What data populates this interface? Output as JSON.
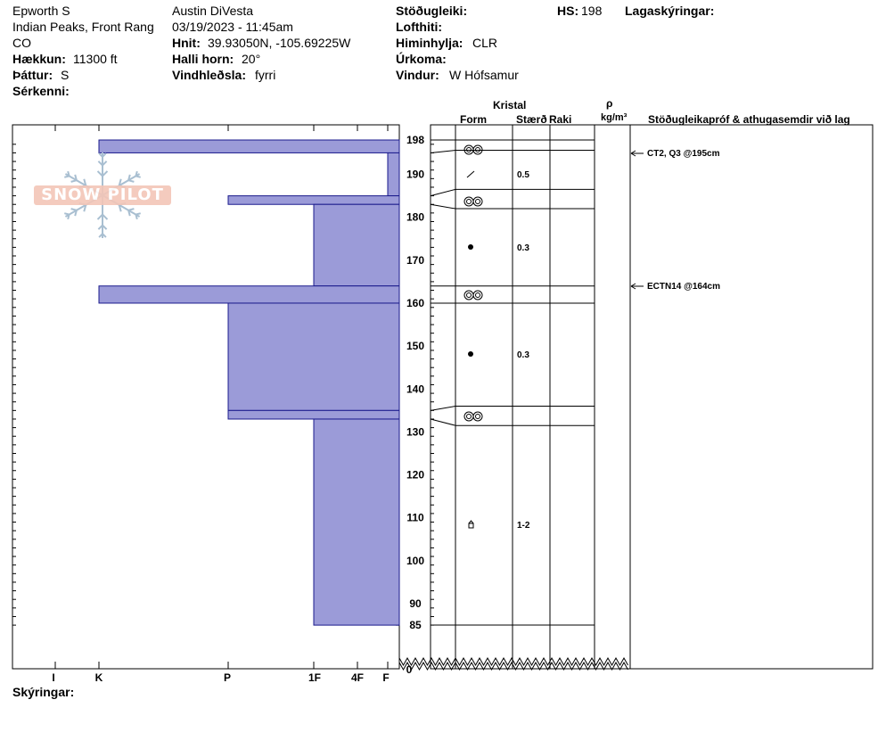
{
  "header": {
    "location_name": "Epworth S",
    "range": "Indian Peaks, Front Rang",
    "state": "CO",
    "elevation_label": "Hækkun:",
    "elevation_value": "11300 ft",
    "aspect_label": "Þáttur:",
    "aspect_value": "S",
    "features_label": "Sérkenni:",
    "observer": "Austin DiVesta",
    "datetime": "03/19/2023 - 11:45am",
    "coords_label": "Hnit:",
    "coords_value": "39.93050N, -105.69225W",
    "slope_label": "Halli horn:",
    "slope_value": "20°",
    "wind_loading_label": "Vindhleðsla:",
    "wind_loading_value": "fyrri",
    "stability_label": "Stöðugleiki:",
    "air_temp_label": "Lofthiti:",
    "sky_label": "Himinhylja:",
    "sky_value": "CLR",
    "precip_label": "Úrkoma:",
    "wind_label": "Vindur:",
    "wind_value": "W Hófsamur",
    "hs_label": "HS:",
    "hs_value": "198",
    "layer_notes_label": "Lagaskýringar:"
  },
  "columns": {
    "crystal": "Kristal",
    "form": "Form",
    "size": "Stærð",
    "moisture": "Raki",
    "rho": "ρ",
    "density_unit": "kg/m³",
    "tests": "Stöðugleikapróf & athugasemdir við lag"
  },
  "hardness_labels": [
    "I",
    "K",
    "P",
    "1F",
    "4F",
    "F"
  ],
  "depth_ticks": [
    "198",
    "190",
    "180",
    "170",
    "160",
    "150",
    "140",
    "130",
    "120",
    "110",
    "100",
    "90",
    "85",
    "0"
  ],
  "layer_sizes": [
    "0.5",
    "0.3",
    "0.3",
    "1-2"
  ],
  "test_notes": [
    "CT2, Q3 @195cm",
    "ECTN14 @164cm"
  ],
  "footer": {
    "notes_label": "Skýringar:"
  },
  "logo_text": "SNOW PILOT",
  "colors": {
    "layer_fill": "#9b9bd8",
    "layer_stroke": "#1a1a8c"
  }
}
